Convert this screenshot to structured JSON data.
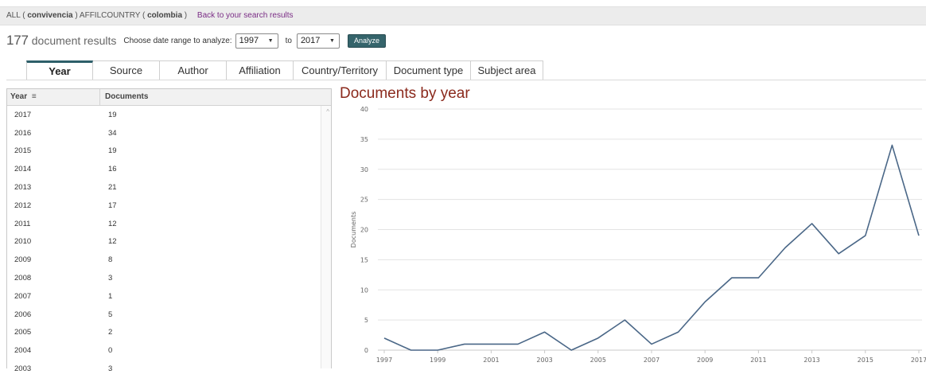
{
  "query": {
    "prefix": "ALL ( ",
    "term1": "convivencia",
    "middle": " ) AFFILCOUNTRY ( ",
    "term2": "colombia",
    "suffix": " )",
    "back_link": "Back to your search results"
  },
  "results": {
    "count": "177",
    "label": "document results",
    "range_label": "Choose date range to analyze:",
    "from_year": "1997",
    "to_label": "to",
    "to_year": "2017",
    "analyze_label": "Analyze"
  },
  "tabs": [
    {
      "label": "Year",
      "active": true
    },
    {
      "label": "Source",
      "active": false
    },
    {
      "label": "Author",
      "active": false
    },
    {
      "label": "Affiliation",
      "active": false
    },
    {
      "label": "Country/Territory",
      "active": false
    },
    {
      "label": "Document type",
      "active": false
    },
    {
      "label": "Subject area",
      "active": false
    }
  ],
  "table": {
    "col_year": "Year",
    "col_docs": "Documents",
    "rows": [
      {
        "year": "2017",
        "docs": "19"
      },
      {
        "year": "2016",
        "docs": "34"
      },
      {
        "year": "2015",
        "docs": "19"
      },
      {
        "year": "2014",
        "docs": "16"
      },
      {
        "year": "2013",
        "docs": "21"
      },
      {
        "year": "2012",
        "docs": "17"
      },
      {
        "year": "2011",
        "docs": "12"
      },
      {
        "year": "2010",
        "docs": "12"
      },
      {
        "year": "2009",
        "docs": "8"
      },
      {
        "year": "2008",
        "docs": "3"
      },
      {
        "year": "2007",
        "docs": "1"
      },
      {
        "year": "2006",
        "docs": "5"
      },
      {
        "year": "2005",
        "docs": "2"
      },
      {
        "year": "2004",
        "docs": "0"
      },
      {
        "year": "2003",
        "docs": "3"
      }
    ]
  },
  "chart_title": "Documents by year",
  "chart_data": {
    "type": "line",
    "title": "Documents by year",
    "xlabel": "",
    "ylabel": "Documents",
    "x": [
      1997,
      1998,
      1999,
      2000,
      2001,
      2002,
      2003,
      2004,
      2005,
      2006,
      2007,
      2008,
      2009,
      2010,
      2011,
      2012,
      2013,
      2014,
      2015,
      2016,
      2017
    ],
    "series": [
      {
        "values": [
          2,
          0,
          0,
          1,
          1,
          1,
          3,
          0,
          2,
          5,
          1,
          3,
          8,
          12,
          12,
          17,
          21,
          16,
          19,
          34,
          19
        ]
      }
    ],
    "xticks": [
      1997,
      1999,
      2001,
      2003,
      2005,
      2007,
      2009,
      2011,
      2013,
      2015,
      2017
    ],
    "yticks": [
      0,
      5,
      10,
      15,
      20,
      25,
      30,
      35,
      40
    ],
    "ylim": [
      0,
      40
    ],
    "grid": "horizontal",
    "line_color": "#4a6787"
  }
}
